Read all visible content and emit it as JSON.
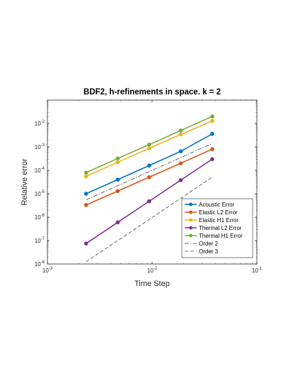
{
  "chart_data": {
    "type": "line",
    "title": "BDF2, h-refinements in space. k = 2",
    "xlabel": "Time Step",
    "ylabel": "Relative error",
    "xscale": "log",
    "yscale": "log",
    "xlim": [
      0.001,
      0.1
    ],
    "ylim": [
      1e-08,
      0.1
    ],
    "x_ticks": [
      {
        "value": 0.001,
        "base": "10",
        "exp": "-3"
      },
      {
        "value": 0.01,
        "base": "10",
        "exp": "-2"
      },
      {
        "value": 0.1,
        "base": "10",
        "exp": "-1"
      }
    ],
    "y_ticks": [
      {
        "value": 1e-08,
        "base": "10",
        "exp": "-8"
      },
      {
        "value": 1e-07,
        "base": "10",
        "exp": "-7"
      },
      {
        "value": 1e-06,
        "base": "10",
        "exp": "-6"
      },
      {
        "value": 1e-05,
        "base": "10",
        "exp": "-5"
      },
      {
        "value": 0.0001,
        "base": "10",
        "exp": "-4"
      },
      {
        "value": 0.001,
        "base": "10",
        "exp": "-3"
      },
      {
        "value": 0.01,
        "base": "10",
        "exp": "-2"
      }
    ],
    "grid": false,
    "legend_position": "bottom-right",
    "x": [
      0.00234,
      0.00469,
      0.00938,
      0.01875,
      0.0375
    ],
    "series": [
      {
        "name": "Acoustic Error",
        "color": "#0072BD",
        "style": "solid",
        "marker": "circle",
        "values": [
          1e-05,
          4e-05,
          0.00016,
          0.00065,
          0.0036
        ]
      },
      {
        "name": "Elastic L2 Error",
        "color": "#D95319",
        "style": "solid",
        "marker": "circle",
        "values": [
          3.3e-06,
          1.3e-05,
          5.1e-05,
          0.0002,
          0.0008
        ]
      },
      {
        "name": "Elastic H1 Error",
        "color": "#EDB120",
        "style": "solid",
        "marker": "circle",
        "values": [
          5.5e-05,
          0.00022,
          0.00087,
          0.0034,
          0.013
        ]
      },
      {
        "name": "Thermal L2 Error",
        "color": "#7E2F8E",
        "style": "solid",
        "marker": "circle",
        "values": [
          7.5e-08,
          6e-07,
          4.8e-06,
          3.8e-05,
          0.0003
        ]
      },
      {
        "name": "Thermal H1 Error",
        "color": "#77AC30",
        "style": "solid",
        "marker": "circle",
        "values": [
          8e-05,
          0.00032,
          0.00125,
          0.005,
          0.02
        ]
      },
      {
        "name": "Order 2",
        "color": "#404040",
        "style": "dashdot",
        "marker": "none",
        "values": [
          5.5e-06,
          2.2e-05,
          8.8e-05,
          0.00035,
          0.0014
        ]
      },
      {
        "name": "Order 3",
        "color": "#404040",
        "style": "dashed",
        "marker": "none",
        "values": [
          1.25e-08,
          1e-07,
          8e-07,
          6.4e-06,
          5.1e-05
        ]
      }
    ]
  }
}
